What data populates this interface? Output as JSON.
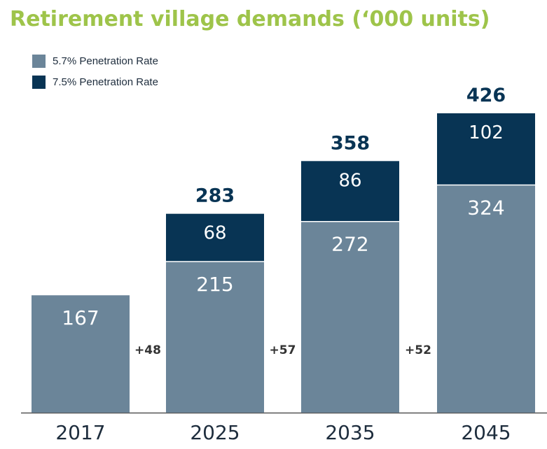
{
  "chart_data": {
    "type": "bar",
    "stacked": true,
    "title": "Retirement village demands (‘000 units)",
    "categories": [
      "2017",
      "2025",
      "2035",
      "2045"
    ],
    "series": [
      {
        "name": "5.7% Penetration Rate",
        "values": [
          167,
          215,
          272,
          324
        ]
      },
      {
        "name": "7.5% Penetration Rate",
        "values": [
          null,
          68,
          86,
          102
        ]
      }
    ],
    "totals": [
      null,
      283,
      358,
      426
    ],
    "increments": [
      "+48",
      "+57",
      "+52"
    ],
    "ylim": [
      0,
      426
    ],
    "xlabel": "",
    "ylabel": "",
    "legend_position": "top-left"
  },
  "colors": {
    "title": "#9ec44a",
    "series_57": "#6b8599",
    "series_75": "#083454",
    "label_on_light": "#ffffff",
    "total_text": "#083454",
    "axis_text": "#1e2d3d",
    "increment_text": "#333333"
  }
}
